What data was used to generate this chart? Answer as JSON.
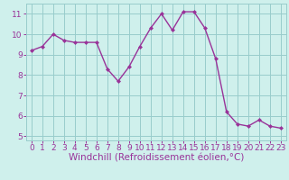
{
  "x": [
    0,
    1,
    2,
    3,
    4,
    5,
    6,
    7,
    8,
    9,
    10,
    11,
    12,
    13,
    14,
    15,
    16,
    17,
    18,
    19,
    20,
    21,
    22,
    23
  ],
  "y": [
    9.2,
    9.4,
    10.0,
    9.7,
    9.6,
    9.6,
    9.6,
    8.3,
    7.7,
    8.4,
    9.4,
    10.3,
    11.0,
    10.2,
    11.1,
    11.1,
    10.3,
    8.8,
    6.2,
    5.6,
    5.5,
    5.8,
    5.5,
    5.4
  ],
  "line_color": "#993399",
  "marker": "D",
  "marker_size": 2.0,
  "bg_color": "#cff0ec",
  "grid_color": "#99cccc",
  "xlabel": "Windchill (Refroidissement éolien,°C)",
  "xlabel_color": "#993399",
  "xlabel_fontsize": 7.5,
  "ylabel_ticks": [
    5,
    6,
    7,
    8,
    9,
    10,
    11
  ],
  "xlim": [
    -0.5,
    23.5
  ],
  "ylim": [
    4.8,
    11.5
  ],
  "tick_fontsize": 6.5,
  "tick_color": "#993399",
  "line_width": 1.0,
  "spine_color": "#99cccc"
}
